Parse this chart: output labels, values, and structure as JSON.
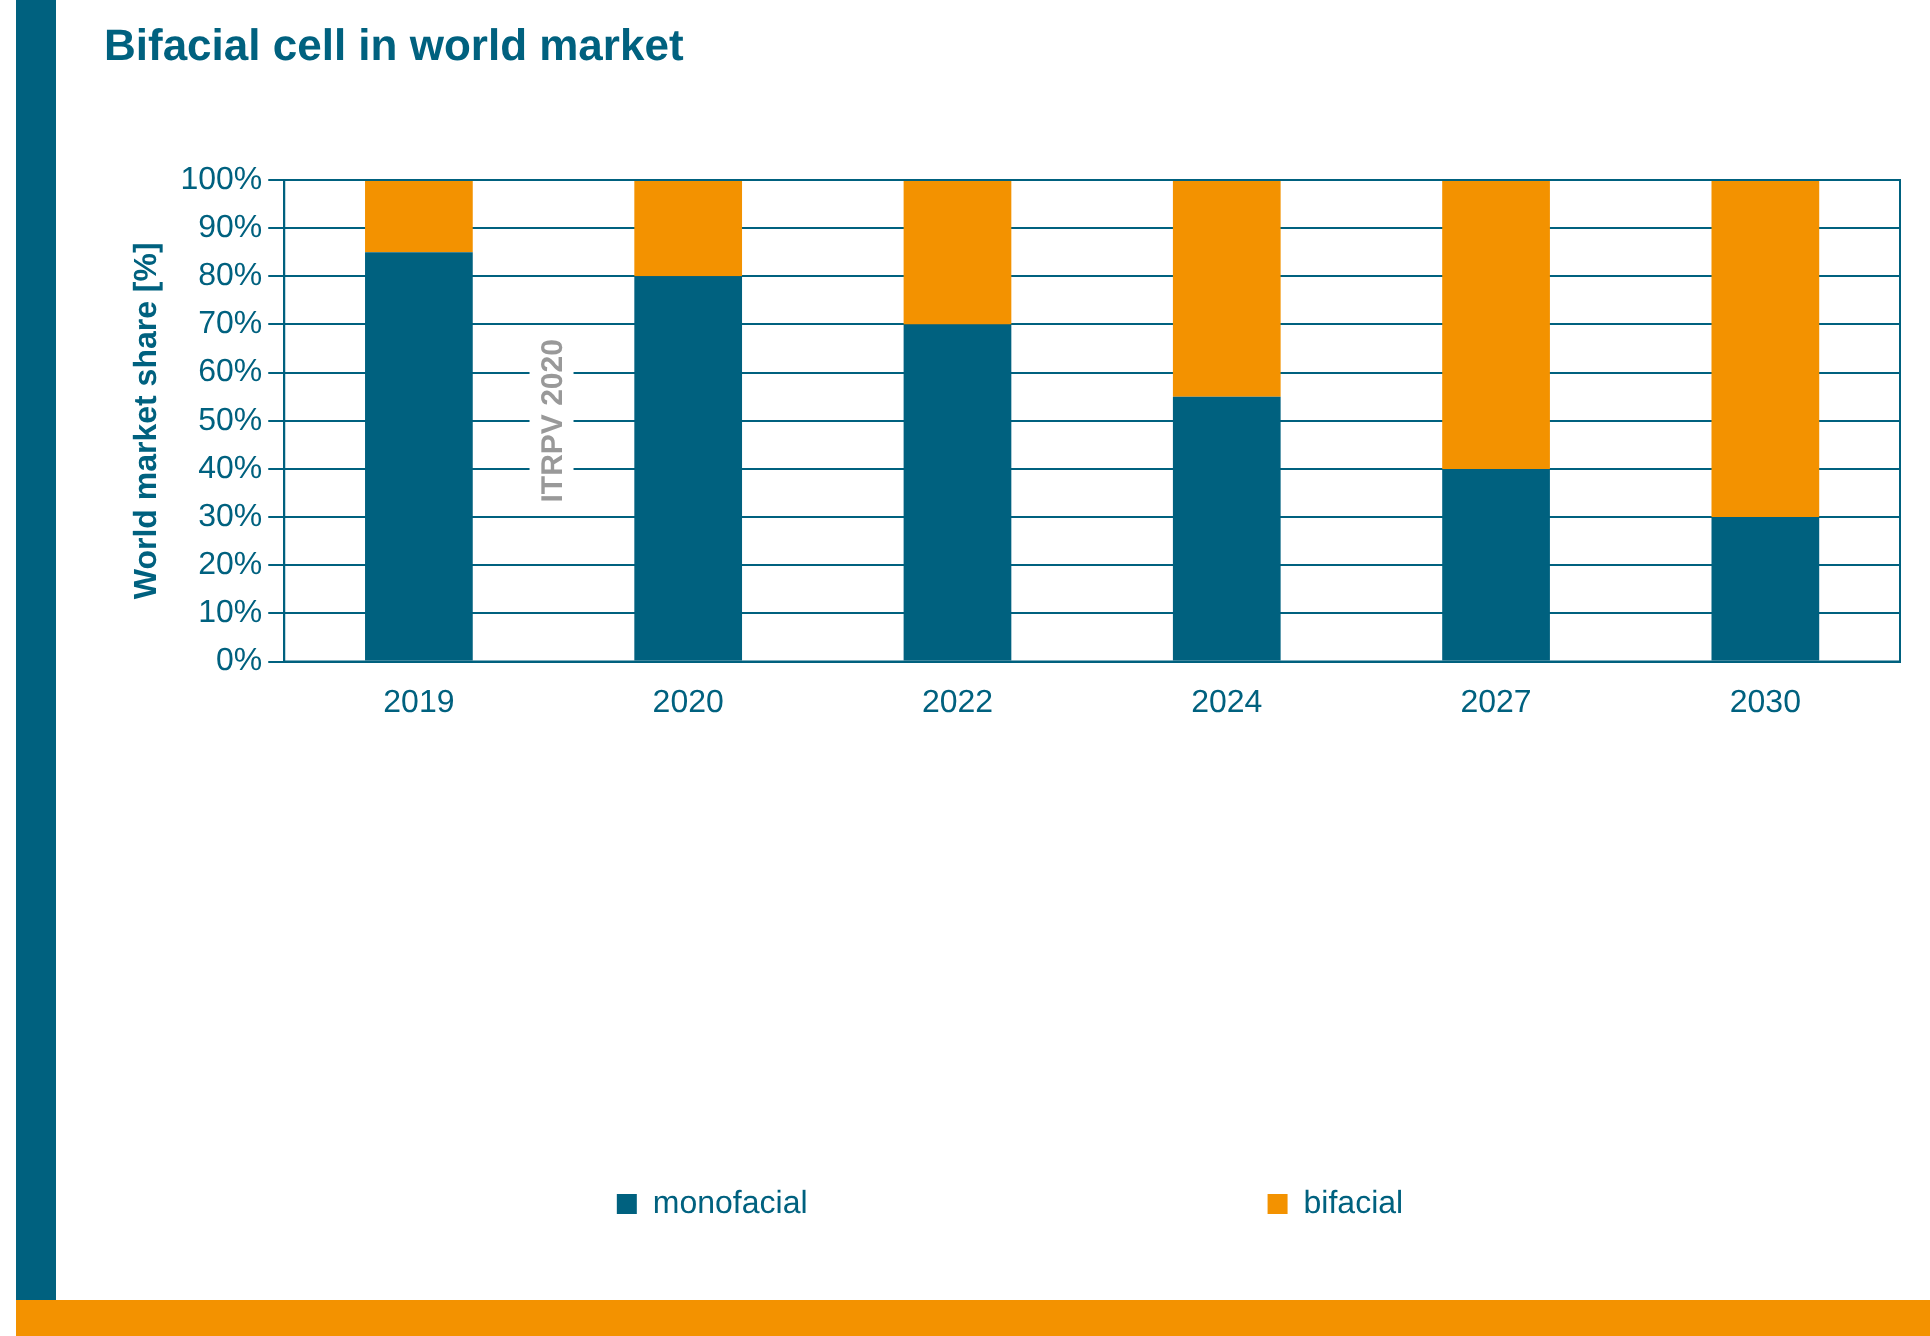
{
  "chart_data": {
    "type": "bar",
    "title": "Bifacial cell in world market",
    "ylabel": "World market share [%]",
    "stacked": true,
    "categories": [
      "2019",
      "2020",
      "2022",
      "2024",
      "2027",
      "2030"
    ],
    "series": [
      {
        "name": "monofacial",
        "color": "#00617f",
        "values": [
          85,
          80,
          70,
          55,
          40,
          30
        ]
      },
      {
        "name": "bifacial",
        "color": "#f39200",
        "values": [
          15,
          20,
          30,
          45,
          60,
          70
        ]
      }
    ],
    "ylim": [
      0,
      100
    ],
    "yticks": [
      {
        "value": 0,
        "label": "0%"
      },
      {
        "value": 10,
        "label": "10%"
      },
      {
        "value": 20,
        "label": "20%"
      },
      {
        "value": 30,
        "label": "30%"
      },
      {
        "value": 40,
        "label": "40%"
      },
      {
        "value": 50,
        "label": "50%"
      },
      {
        "value": 60,
        "label": "60%"
      },
      {
        "value": 70,
        "label": "70%"
      },
      {
        "value": 80,
        "label": "80%"
      },
      {
        "value": 90,
        "label": "90%"
      },
      {
        "value": 100,
        "label": "100%"
      }
    ],
    "grid": "y",
    "legend": "bottom",
    "annotations": [
      "ITRPV 2020"
    ]
  }
}
